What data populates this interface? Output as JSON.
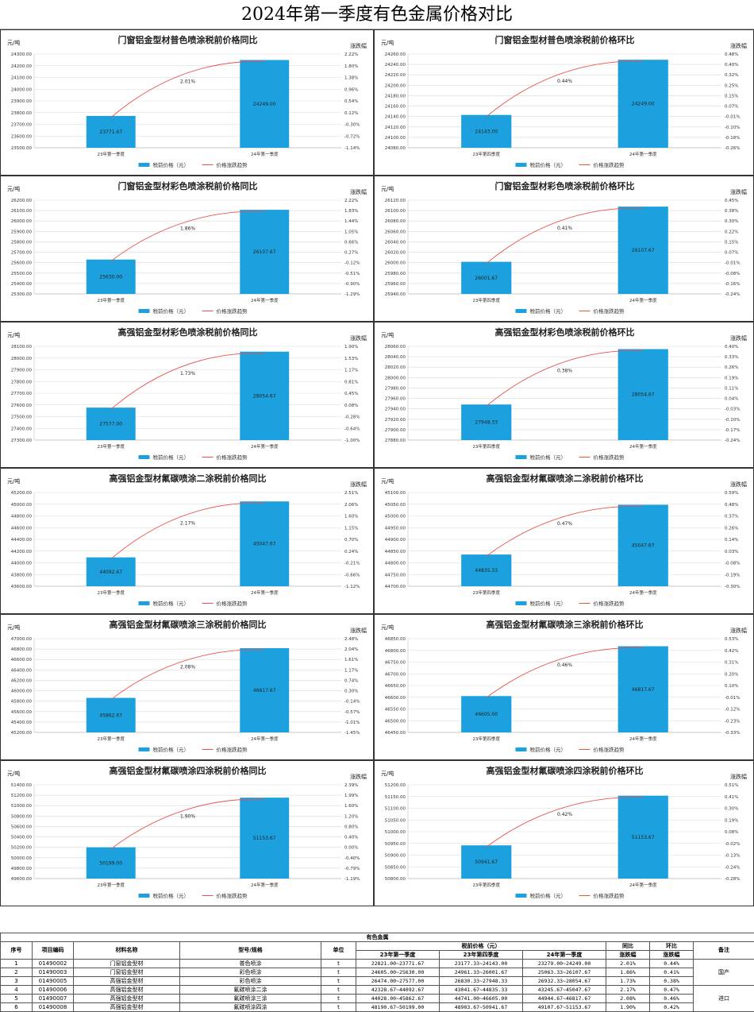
{
  "page_title": "2024年第一季度有色金属价格对比",
  "colors": {
    "bar": "#1CA1DE",
    "line": "#E8524B",
    "grid": "#D9D9D9"
  },
  "chart_data": [
    {
      "type": "bar",
      "title": "门窗铝金型材普色喷涂税前价格同比",
      "ylabel": "元/吨",
      "y2label": "涨跌幅",
      "categories": [
        "23年第一季度",
        "24年第一季度"
      ],
      "values": [
        23771.67,
        24249.0
      ],
      "value_labels": [
        "23771.67",
        "24249.00"
      ],
      "ylim": [
        23500,
        24300
      ],
      "yticks": [
        "24300.00",
        "24200.00",
        "24100.00",
        "24000.00",
        "23900.00",
        "23800.00",
        "23700.00",
        "23600.00",
        "23500.00"
      ],
      "y2ticks": [
        "2.22%",
        "1.80%",
        "1.38%",
        "0.96%",
        "0.54%",
        "0.12%",
        "-0.30%",
        "-0.72%",
        "-1.14%"
      ],
      "trend_label": "2.01%",
      "legend": [
        "税前价格（元）",
        "价格涨跌趋势"
      ]
    },
    {
      "type": "bar",
      "title": "门窗铝金型材普色喷涂税前价格环比",
      "ylabel": "元/吨",
      "y2label": "涨跌幅",
      "categories": [
        "23年第四季度",
        "24年第一季度"
      ],
      "values": [
        24143.0,
        24249.0
      ],
      "value_labels": [
        "24143.00",
        "24249.00"
      ],
      "ylim": [
        24080,
        24260
      ],
      "yticks": [
        "24260.00",
        "24240.00",
        "24220.00",
        "24200.00",
        "24180.00",
        "24160.00",
        "24140.00",
        "24120.00",
        "24100.00",
        "24080.00"
      ],
      "y2ticks": [
        "0.48%",
        "0.40%",
        "0.32%",
        "0.25%",
        "0.15%",
        "0.07%",
        "-0.01%",
        "-0.10%",
        "-0.18%",
        "-0.26%"
      ],
      "trend_label": "0.44%",
      "legend": [
        "税前价格（元）",
        "价格涨跌趋势"
      ]
    },
    {
      "type": "bar",
      "title": "门窗铝金型材彩色喷涂税前价格同比",
      "ylabel": "元/吨",
      "y2label": "涨跌幅",
      "categories": [
        "23年第一季度",
        "24年第一季度"
      ],
      "values": [
        25630.0,
        26107.67
      ],
      "value_labels": [
        "25630.00",
        "26107.67"
      ],
      "ylim": [
        25300,
        26200
      ],
      "yticks": [
        "26200.00",
        "26100.00",
        "26000.00",
        "25900.00",
        "25800.00",
        "25700.00",
        "25600.00",
        "25500.00",
        "25400.00",
        "25300.00"
      ],
      "y2ticks": [
        "2.22%",
        "1.83%",
        "1.44%",
        "1.05%",
        "0.66%",
        "0.27%",
        "-0.12%",
        "-0.51%",
        "-0.90%",
        "-1.29%"
      ],
      "trend_label": "1.86%",
      "legend": [
        "税前价格（元）",
        "价格涨跌趋势"
      ]
    },
    {
      "type": "bar",
      "title": "门窗铝金型材彩色喷涂税前价格环比",
      "ylabel": "元/吨",
      "y2label": "涨跌幅",
      "categories": [
        "23年第四季度",
        "24年第一季度"
      ],
      "values": [
        26001.67,
        26107.67
      ],
      "value_labels": [
        "26001.67",
        "26107.67"
      ],
      "ylim": [
        25940,
        26120
      ],
      "yticks": [
        "26120.00",
        "26100.00",
        "26080.00",
        "26060.00",
        "26040.00",
        "26020.00",
        "26000.00",
        "25980.00",
        "25960.00",
        "25940.00"
      ],
      "y2ticks": [
        "0.45%",
        "0.38%",
        "0.30%",
        "0.22%",
        "0.15%",
        "0.07%",
        "-0.01%",
        "-0.08%",
        "-0.16%",
        "-0.24%"
      ],
      "trend_label": "0.41%",
      "legend": [
        "税前价格（元）",
        "价格涨跌趋势"
      ]
    },
    {
      "type": "bar",
      "title": "高强铝金型材彩色喷涂税前价格同比",
      "ylabel": "元/吨",
      "y2label": "涨跌幅",
      "categories": [
        "23年第一季度",
        "24年第一季度"
      ],
      "values": [
        27577.0,
        28054.67
      ],
      "value_labels": [
        "27577.00",
        "28054.67"
      ],
      "ylim": [
        27300,
        28100
      ],
      "yticks": [
        "28100.00",
        "28000.00",
        "27900.00",
        "27800.00",
        "27700.00",
        "27600.00",
        "27500.00",
        "27400.00",
        "27300.00"
      ],
      "y2ticks": [
        "1.90%",
        "1.53%",
        "1.17%",
        "0.81%",
        "0.45%",
        "0.08%",
        "-0.28%",
        "-0.64%",
        "-1.00%"
      ],
      "trend_label": "1.73%",
      "legend": [
        "税前价格（元）",
        "价格涨跌趋势"
      ]
    },
    {
      "type": "bar",
      "title": "高强铝金型材彩色喷涂税前价格环比",
      "ylabel": "元/吨",
      "y2label": "涨跌幅",
      "categories": [
        "23年第四季度",
        "24年第一季度"
      ],
      "values": [
        27948.33,
        28054.67
      ],
      "value_labels": [
        "27948.33",
        "28054.67"
      ],
      "ylim": [
        27880,
        28060
      ],
      "yticks": [
        "28060.00",
        "28040.00",
        "28020.00",
        "28000.00",
        "27980.00",
        "27960.00",
        "27940.00",
        "27920.00",
        "27900.00",
        "27880.00"
      ],
      "y2ticks": [
        "0.40%",
        "0.33%",
        "0.26%",
        "0.19%",
        "0.11%",
        "0.04%",
        "-0.03%",
        "-0.10%",
        "-0.17%",
        "-0.24%"
      ],
      "trend_label": "0.38%",
      "legend": [
        "税前价格（元）",
        "价格涨跌趋势"
      ]
    },
    {
      "type": "bar",
      "title": "高强铝金型材氟碳喷涂二涂税前价格同比",
      "ylabel": "元/吨",
      "y2label": "涨跌幅",
      "categories": [
        "23年第一季度",
        "24年第一季度"
      ],
      "values": [
        44092.67,
        45047.67
      ],
      "value_labels": [
        "44092.67",
        "45047.67"
      ],
      "ylim": [
        43600,
        45200
      ],
      "yticks": [
        "45200.00",
        "45000.00",
        "44800.00",
        "44600.00",
        "44400.00",
        "44200.00",
        "44000.00",
        "43800.00",
        "43600.00"
      ],
      "y2ticks": [
        "2.51%",
        "2.06%",
        "1.60%",
        "1.15%",
        "0.70%",
        "0.24%",
        "-0.21%",
        "-0.66%",
        "-1.12%"
      ],
      "trend_label": "2.17%",
      "legend": [
        "税前价格（元）",
        "价格涨跌趋势"
      ]
    },
    {
      "type": "bar",
      "title": "高强铝金型材氟碳喷涂二涂税前价格环比",
      "ylabel": "元/吨",
      "y2label": "涨跌幅",
      "categories": [
        "23年第四季度",
        "24年第一季度"
      ],
      "values": [
        44835.33,
        45047.67
      ],
      "value_labels": [
        "44835.33",
        "45047.67"
      ],
      "ylim": [
        44700,
        45100
      ],
      "yticks": [
        "45100.00",
        "45050.00",
        "45000.00",
        "44950.00",
        "44900.00",
        "44850.00",
        "44800.00",
        "44750.00",
        "44700.00"
      ],
      "y2ticks": [
        "0.59%",
        "0.48%",
        "0.37%",
        "0.26%",
        "0.14%",
        "0.03%",
        "-0.08%",
        "-0.19%",
        "-0.30%"
      ],
      "trend_label": "0.47%",
      "legend": [
        "税前价格（元）",
        "价格涨跌趋势"
      ]
    },
    {
      "type": "bar",
      "title": "高强铝金型材氟碳喷涂三涂税前价格同比",
      "ylabel": "元/吨",
      "y2label": "涨跌幅",
      "categories": [
        "23年第一季度",
        "24年第一季度"
      ],
      "values": [
        45862.67,
        46817.67
      ],
      "value_labels": [
        "45862.67",
        "46817.67"
      ],
      "ylim": [
        45200,
        47000
      ],
      "yticks": [
        "47000.00",
        "46800.00",
        "46600.00",
        "46400.00",
        "46200.00",
        "46000.00",
        "45800.00",
        "45600.00",
        "45400.00",
        "45200.00"
      ],
      "y2ticks": [
        "2.48%",
        "2.04%",
        "1.61%",
        "1.17%",
        "0.74%",
        "0.30%",
        "-0.14%",
        "-0.57%",
        "-1.01%",
        "-1.45%"
      ],
      "trend_label": "2.08%",
      "legend": [
        "税前价格（元）",
        "价格涨跌趋势"
      ]
    },
    {
      "type": "bar",
      "title": "高强铝金型材氟碳喷涂三涂税前价格环比",
      "ylabel": "元/吨",
      "y2label": "涨跌幅",
      "categories": [
        "23年第四季度",
        "24年第一季度"
      ],
      "values": [
        46605.0,
        46817.67
      ],
      "value_labels": [
        "46605.00",
        "46817.67"
      ],
      "ylim": [
        46450,
        46850
      ],
      "yticks": [
        "46850.00",
        "46800.00",
        "46750.00",
        "46700.00",
        "46650.00",
        "46600.00",
        "46550.00",
        "46500.00",
        "46450.00"
      ],
      "y2ticks": [
        "0.53%",
        "0.42%",
        "0.31%",
        "0.20%",
        "0.10%",
        "-0.01%",
        "-0.12%",
        "-0.23%",
        "-0.33%"
      ],
      "trend_label": "0.46%",
      "legend": [
        "税前价格（元）",
        "价格涨跌趋势"
      ]
    },
    {
      "type": "bar",
      "title": "高强铝金型材氟碳喷涂四涂税前价格同比",
      "ylabel": "元/吨",
      "y2label": "涨跌幅",
      "categories": [
        "23年第一季度",
        "24年第一季度"
      ],
      "values": [
        50199.0,
        51153.67
      ],
      "value_labels": [
        "50199.00",
        "51153.67"
      ],
      "ylim": [
        49600,
        51400
      ],
      "yticks": [
        "51400.00",
        "51200.00",
        "51000.00",
        "50800.00",
        "50600.00",
        "50400.00",
        "50200.00",
        "50000.00",
        "49800.00",
        "49600.00"
      ],
      "y2ticks": [
        "2.39%",
        "1.99%",
        "1.60%",
        "1.20%",
        "0.80%",
        "0.40%",
        "0.00%",
        "-0.40%",
        "-0.79%",
        "-1.19%"
      ],
      "trend_label": "1.90%",
      "legend": [
        "税前价格（元）",
        "价格涨跌趋势"
      ]
    },
    {
      "type": "bar",
      "title": "高强铝金型材氟碳喷涂四涂税前价格环比",
      "ylabel": "元/吨",
      "y2label": "涨跌幅",
      "categories": [
        "23年第四季度",
        "24年第一季度"
      ],
      "values": [
        50941.67,
        51153.67
      ],
      "value_labels": [
        "50941.67",
        "51153.67"
      ],
      "ylim": [
        50800,
        51200
      ],
      "yticks": [
        "51200.00",
        "51150.00",
        "51100.00",
        "51050.00",
        "51000.00",
        "50950.00",
        "50900.00",
        "50850.00",
        "50800.00"
      ],
      "y2ticks": [
        "0.51%",
        "0.41%",
        "0.30%",
        "0.19%",
        "0.08%",
        "-0.02%",
        "-0.13%",
        "-0.24%",
        "-0.28%"
      ],
      "trend_label": "0.42%",
      "legend": [
        "税前价格（元）",
        "价格涨跌趋势"
      ]
    }
  ],
  "table": {
    "group_title": "有色金属",
    "headers": {
      "seq": "序号",
      "code": "项目编码",
      "name": "材料名称",
      "spec": "型号/规格",
      "unit": "单位",
      "price": "税前价格（元）",
      "yoy": "同比\n涨跌幅",
      "qoq": "环比\n涨跌幅",
      "note": "备注"
    },
    "price_cols": [
      "23年第一季度",
      "23年第四季度",
      "24年第一季度"
    ],
    "yoy_label": "同比",
    "yoy_sub": "涨跌幅",
    "qoq_label": "环比",
    "qoq_sub": "涨跌幅",
    "rows": [
      {
        "seq": "1",
        "code": "01490002",
        "name": "门窗铝金型材",
        "spec": "普色喷涂",
        "unit": "t",
        "p1": "22821.00~23771.67",
        "p2": "23177.33~24143.00",
        "p3": "23279.00~24249.00",
        "yoy": "2.01%",
        "qoq": "0.44%"
      },
      {
        "seq": "2",
        "code": "01490003",
        "name": "门窗铝金型材",
        "spec": "彩色喷涂",
        "unit": "t",
        "p1": "24605.00~25630.00",
        "p2": "24961.33~26001.67",
        "p3": "25063.33~26107.67",
        "yoy": "1.86%",
        "qoq": "0.41%"
      },
      {
        "seq": "3",
        "code": "01490005",
        "name": "高强铝金型材",
        "spec": "彩色喷涂",
        "unit": "t",
        "p1": "26474.00~27577.00",
        "p2": "26830.33~27948.33",
        "p3": "26932.33~28054.67",
        "yoy": "1.73%",
        "qoq": "0.38%"
      },
      {
        "seq": "4",
        "code": "01490006",
        "name": "高强铝金型材",
        "spec": "氟碳喷涂二涂",
        "unit": "t",
        "p1": "42328.67~44092.67",
        "p2": "43041.67~44835.33",
        "p3": "43245.67~45047.67",
        "yoy": "2.17%",
        "qoq": "0.47%"
      },
      {
        "seq": "5",
        "code": "01490007",
        "name": "高强铝金型材",
        "spec": "氟碳喷涂三涂",
        "unit": "t",
        "p1": "44028.00~45862.67",
        "p2": "44741.00~46605.00",
        "p3": "44944.67~46817.67",
        "yoy": "2.08%",
        "qoq": "0.46%"
      },
      {
        "seq": "6",
        "code": "01490008",
        "name": "高强铝金型材",
        "spec": "氟碳喷涂四涂",
        "unit": "t",
        "p1": "48190.67~50199.00",
        "p2": "48903.67~50941.67",
        "p3": "49107.67~51153.67",
        "yoy": "1.90%",
        "qoq": "0.42%"
      }
    ],
    "notes": [
      "国产",
      "进口"
    ]
  }
}
